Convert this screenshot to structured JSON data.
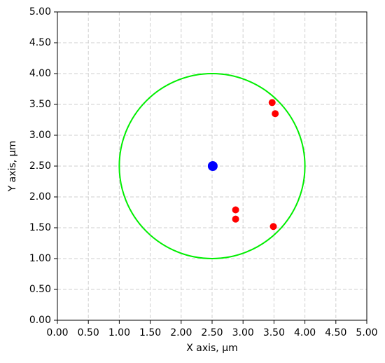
{
  "chart_data": {
    "type": "scatter",
    "xlabel": "X axis, µm",
    "ylabel": "Y axis, µm",
    "xlim": [
      0,
      5
    ],
    "ylim": [
      0,
      5
    ],
    "xticks": [
      {
        "value": 0,
        "label": "0.00"
      },
      {
        "value": 0.5,
        "label": "0.50"
      },
      {
        "value": 1,
        "label": "1.00"
      },
      {
        "value": 1.5,
        "label": "1.50"
      },
      {
        "value": 2,
        "label": "2.00"
      },
      {
        "value": 2.5,
        "label": "2.50"
      },
      {
        "value": 3,
        "label": "3.00"
      },
      {
        "value": 3.5,
        "label": "3.50"
      },
      {
        "value": 4,
        "label": "4.00"
      },
      {
        "value": 4.5,
        "label": "4.50"
      },
      {
        "value": 5,
        "label": "5.00"
      }
    ],
    "yticks": [
      {
        "value": 0,
        "label": "0.00"
      },
      {
        "value": 0.5,
        "label": "0.50"
      },
      {
        "value": 1,
        "label": "1.00"
      },
      {
        "value": 1.5,
        "label": "1.50"
      },
      {
        "value": 2,
        "label": "2.00"
      },
      {
        "value": 2.5,
        "label": "2.50"
      },
      {
        "value": 3,
        "label": "3.00"
      },
      {
        "value": 3.5,
        "label": "3.50"
      },
      {
        "value": 4,
        "label": "4.00"
      },
      {
        "value": 4.5,
        "label": "4.50"
      },
      {
        "value": 5,
        "label": "5.00"
      }
    ],
    "grid": true,
    "circle": {
      "center": [
        2.5,
        2.5
      ],
      "radius": 1.5,
      "color": "#00ee00"
    },
    "series": [
      {
        "color": "#ff0000",
        "x": [
          3.47,
          3.52,
          2.88,
          2.88,
          3.49
        ],
        "values": [
          3.53,
          3.35,
          1.79,
          1.64,
          1.52
        ]
      },
      {
        "color": "#0000ff",
        "x": [
          2.51
        ],
        "values": [
          2.5
        ]
      }
    ]
  }
}
